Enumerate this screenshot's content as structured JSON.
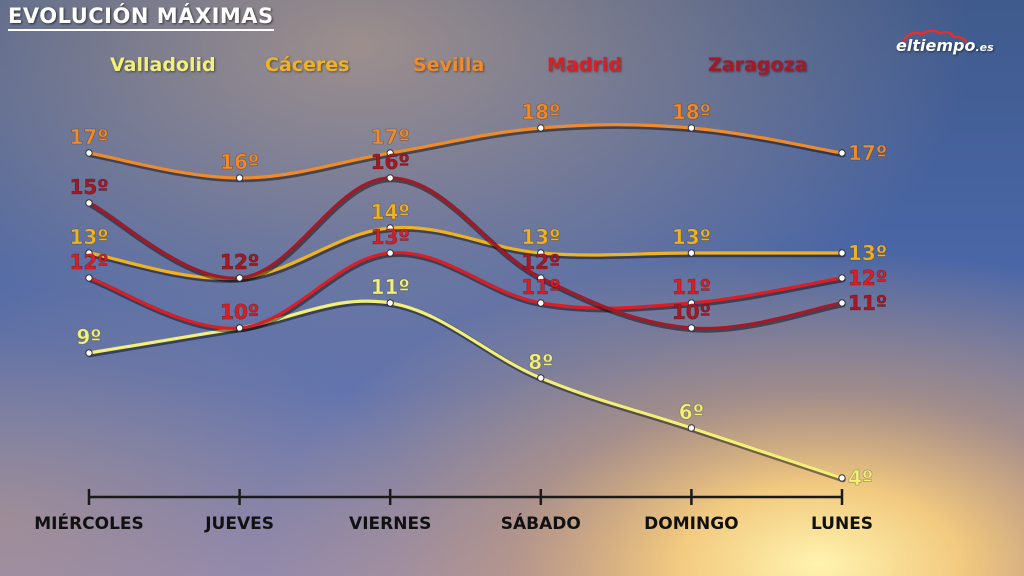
{
  "header": {
    "title": "EVOLUCIÓN MÁXIMAS"
  },
  "logo": {
    "name": "eltiempo",
    "tld": ".es",
    "icon": "cloud-icon"
  },
  "colors": {
    "Valladolid": "#f3f07a",
    "Cáceres": "#f0b220",
    "Sevilla": "#f08a2a",
    "Madrid": "#dc1e24",
    "Zaragoza": "#a51826",
    "axis": "#1a1a1a",
    "title_text": "#ffffff"
  },
  "chart_data": {
    "type": "line",
    "title": "EVOLUCIÓN MÁXIMAS",
    "categories": [
      "MIÉRCOLES",
      "JUEVES",
      "VIERNES",
      "SÁBADO",
      "DOMINGO",
      "LUNES"
    ],
    "unit_suffix": "º",
    "legend_position": "top",
    "grid": false,
    "series": [
      {
        "name": "Valladolid",
        "values": [
          9,
          10,
          11,
          8,
          6,
          4
        ]
      },
      {
        "name": "Cáceres",
        "values": [
          13,
          12,
          14,
          13,
          13,
          13
        ]
      },
      {
        "name": "Sevilla",
        "values": [
          17,
          16,
          17,
          18,
          18,
          17
        ]
      },
      {
        "name": "Madrid",
        "values": [
          12,
          10,
          13,
          11,
          11,
          12
        ]
      },
      {
        "name": "Zaragoza",
        "values": [
          15,
          12,
          16,
          12,
          10,
          11
        ]
      }
    ]
  }
}
